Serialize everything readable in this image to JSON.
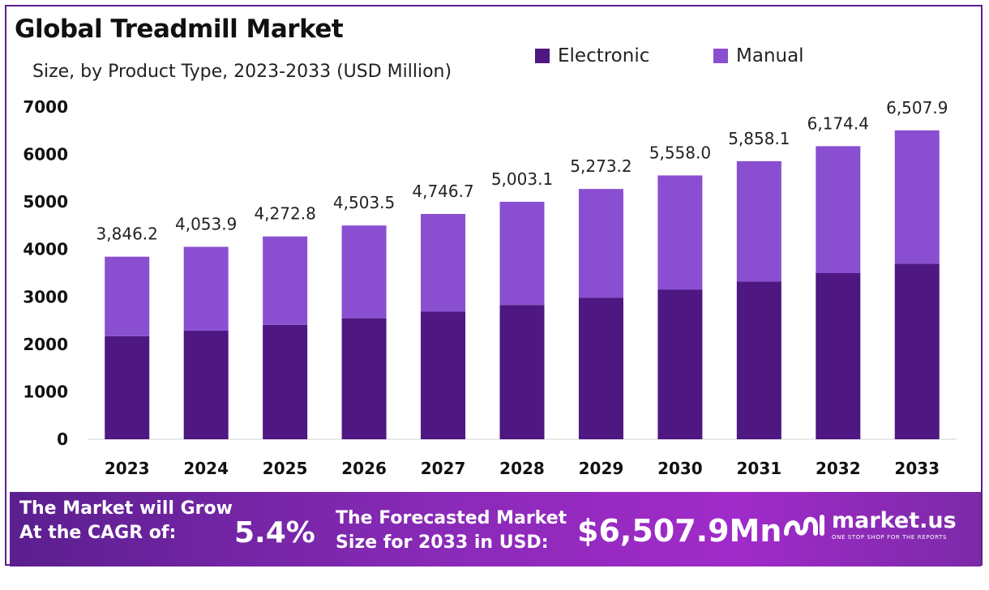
{
  "header": {
    "title": "Global Treadmill Market",
    "subtitle": "Size, by Product Type, 2023-2033 (USD Million)"
  },
  "colors": {
    "electronic": "#4e1782",
    "manual": "#8a4fd1",
    "axis_text": "#111111",
    "label_text": "#222222"
  },
  "chart_data": {
    "type": "bar",
    "stacked": true,
    "categories": [
      "2023",
      "2024",
      "2025",
      "2026",
      "2027",
      "2028",
      "2029",
      "2030",
      "2031",
      "2032",
      "2033"
    ],
    "series": [
      {
        "name": "Electronic",
        "values": [
          2170,
          2290,
          2410,
          2550,
          2690,
          2830,
          2980,
          3150,
          3320,
          3500,
          3700
        ]
      },
      {
        "name": "Manual",
        "values": [
          1676.2,
          1763.9,
          1862.8,
          1953.5,
          2056.7,
          2173.1,
          2293.2,
          2408.0,
          2538.1,
          2674.4,
          2807.9
        ]
      }
    ],
    "totals": [
      3846.2,
      4053.9,
      4272.8,
      4503.5,
      4746.7,
      5003.1,
      5273.2,
      5558.0,
      5858.1,
      6174.4,
      6507.9
    ],
    "data_labels": [
      "3,846.2",
      "4,053.9",
      "4,272.8",
      "4,503.5",
      "4,746.7",
      "5,003.1",
      "5,273.2",
      "5,558.0",
      "5,858.1",
      "6,174.4",
      "6,507.9"
    ],
    "ylim": [
      0,
      7000
    ],
    "yticks": [
      0,
      1000,
      2000,
      3000,
      4000,
      5000,
      6000,
      7000
    ],
    "xlabel": "",
    "ylabel": "",
    "grid": false,
    "legend": "top-right"
  },
  "footer": {
    "cagr_line1": "The Market will Grow",
    "cagr_line2": "At the CAGR of:",
    "cagr_value": "5.4%",
    "forecast_line1": "The Forecasted Market",
    "forecast_line2": "Size for 2033 in USD:",
    "forecast_value": "$6,507.9Mn",
    "brand_name": "market.us",
    "brand_tagline": "ONE STOP SHOP FOR THE REPORTS",
    "brand_icon": "market-us-logo-icon"
  }
}
